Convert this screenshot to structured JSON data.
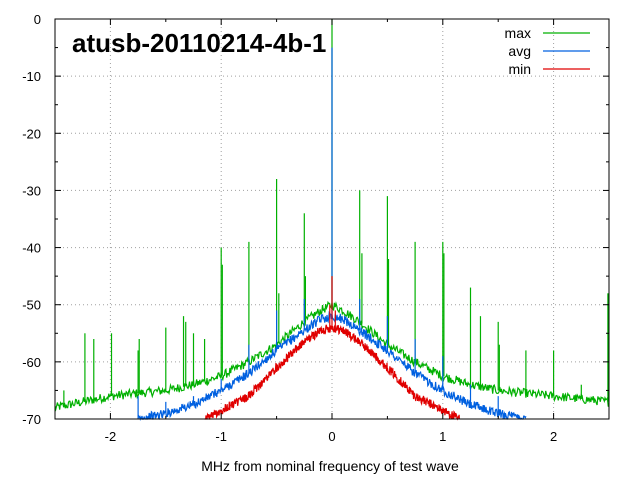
{
  "chart_data": {
    "type": "line",
    "title": "atusb-20110214-4b-1",
    "xlabel": "MHz from nominal frequency of test wave",
    "ylabel": "",
    "xlim": [
      -2.5,
      2.5
    ],
    "ylim": [
      -70,
      0
    ],
    "x_ticks": [
      -2,
      -1,
      0,
      1,
      2
    ],
    "x_tick_labels": [
      "-2",
      "-1",
      "0",
      "1",
      "2"
    ],
    "y_ticks": [
      0,
      -10,
      -20,
      -30,
      -40,
      -50,
      -60,
      -70
    ],
    "y_tick_labels": [
      "0",
      "-10",
      "-20",
      "-30",
      "-40",
      "-50",
      "-60",
      "-70"
    ],
    "grid": "dotted",
    "legend_position": "top-right",
    "series": [
      {
        "name": "max",
        "color": "#00b000",
        "x": [
          -2.5,
          -2.25,
          -2.0,
          -1.75,
          -1.5,
          -1.25,
          -1.0,
          -0.75,
          -0.5,
          -0.25,
          -0.1,
          0.0,
          0.1,
          0.25,
          0.5,
          0.75,
          1.0,
          1.25,
          1.5,
          1.75,
          2.0,
          2.25,
          2.5
        ],
        "y": [
          -68,
          -67,
          -66,
          -65.5,
          -65,
          -64,
          -62.5,
          -60,
          -57,
          -53,
          -51,
          -50,
          -51,
          -53,
          -57,
          -60,
          -62.5,
          -64,
          -65,
          -65.5,
          -66,
          -66.5,
          -67
        ],
        "spikes": [
          {
            "x": -2.42,
            "y": -65
          },
          {
            "x": -2.23,
            "y": -55
          },
          {
            "x": -2.15,
            "y": -56
          },
          {
            "x": -1.99,
            "y": -55
          },
          {
            "x": -1.75,
            "y": -58
          },
          {
            "x": -1.74,
            "y": -56
          },
          {
            "x": -1.5,
            "y": -54
          },
          {
            "x": -1.34,
            "y": -52
          },
          {
            "x": -1.32,
            "y": -53
          },
          {
            "x": -1.25,
            "y": -55
          },
          {
            "x": -1.15,
            "y": -56
          },
          {
            "x": -1.0,
            "y": -40
          },
          {
            "x": -0.99,
            "y": -43
          },
          {
            "x": -0.75,
            "y": -39
          },
          {
            "x": -0.5,
            "y": -28
          },
          {
            "x": -0.48,
            "y": -48
          },
          {
            "x": -0.25,
            "y": -34
          },
          {
            "x": -0.24,
            "y": -45
          },
          {
            "x": 0.0,
            "y": 0
          },
          {
            "x": 0.25,
            "y": -30
          },
          {
            "x": 0.27,
            "y": -41
          },
          {
            "x": 0.5,
            "y": -31
          },
          {
            "x": 0.51,
            "y": -42
          },
          {
            "x": 0.75,
            "y": -39
          },
          {
            "x": 1.0,
            "y": -39
          },
          {
            "x": 1.01,
            "y": -41
          },
          {
            "x": 1.25,
            "y": -47
          },
          {
            "x": 1.34,
            "y": -52
          },
          {
            "x": 1.5,
            "y": -53
          },
          {
            "x": 1.51,
            "y": -57
          },
          {
            "x": 1.75,
            "y": -58
          },
          {
            "x": 2.0,
            "y": -58
          },
          {
            "x": 2.25,
            "y": -64
          },
          {
            "x": 2.49,
            "y": -48
          }
        ]
      },
      {
        "name": "avg",
        "color": "#0060e0",
        "x": [
          -1.75,
          -1.5,
          -1.25,
          -1.0,
          -0.75,
          -0.5,
          -0.25,
          -0.1,
          0.0,
          0.1,
          0.25,
          0.5,
          0.75,
          1.0,
          1.25,
          1.5,
          1.75
        ],
        "y": [
          -70,
          -69,
          -67.5,
          -65,
          -62,
          -58,
          -54.5,
          -52.5,
          -52,
          -52.5,
          -54.5,
          -58,
          -62,
          -65,
          -67.5,
          -69,
          -70
        ],
        "spikes": [
          {
            "x": -1.75,
            "y": -66
          },
          {
            "x": -1.5,
            "y": -67
          },
          {
            "x": -1.25,
            "y": -66
          },
          {
            "x": -1.0,
            "y": -63
          },
          {
            "x": -0.75,
            "y": -57
          },
          {
            "x": -0.5,
            "y": -51
          },
          {
            "x": -0.25,
            "y": -49
          },
          {
            "x": 0.0,
            "y": -5
          },
          {
            "x": 0.25,
            "y": -49
          },
          {
            "x": 0.5,
            "y": -52
          },
          {
            "x": 0.75,
            "y": -56
          },
          {
            "x": 1.0,
            "y": -59
          },
          {
            "x": 1.25,
            "y": -64
          },
          {
            "x": 1.5,
            "y": -66
          },
          {
            "x": 2.25,
            "y": -70
          }
        ]
      },
      {
        "name": "min",
        "color": "#e00000",
        "x": [
          -1.15,
          -1.0,
          -0.75,
          -0.5,
          -0.25,
          -0.1,
          0.0,
          0.1,
          0.25,
          0.5,
          0.75,
          1.0,
          1.15
        ],
        "y": [
          -70,
          -68.5,
          -66,
          -61,
          -56.5,
          -54.5,
          -54,
          -54.5,
          -56.5,
          -61,
          -66,
          -68.5,
          -70
        ],
        "spikes": [
          {
            "x": 0.0,
            "y": -45
          },
          {
            "x": -0.02,
            "y": -50
          },
          {
            "x": 0.03,
            "y": -51
          }
        ]
      }
    ]
  }
}
